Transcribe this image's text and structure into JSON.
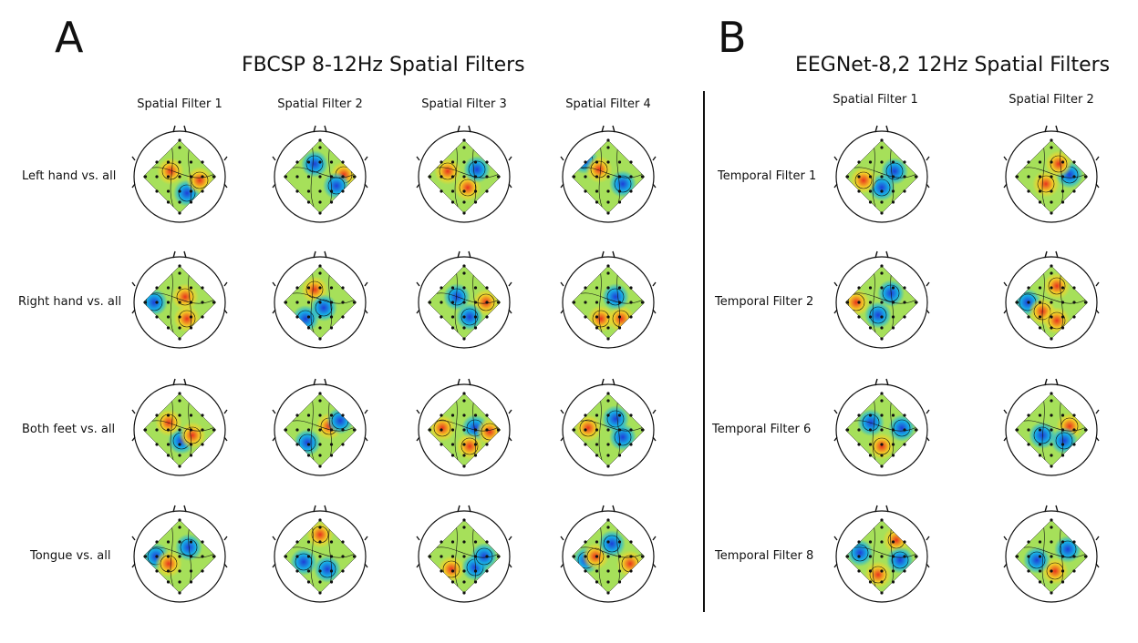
{
  "panel_a": {
    "letter": "A",
    "title": "FBCSP 8-12Hz Spatial Filters",
    "columns": [
      "Spatial Filter 1",
      "Spatial Filter 2",
      "Spatial Filter 3",
      "Spatial Filter 4"
    ],
    "rows": [
      "Left hand vs. all",
      "Right hand vs. all",
      "Both feet vs. all",
      "Tongue vs. all"
    ]
  },
  "panel_b": {
    "letter": "B",
    "title": "EEGNet-8,2 12Hz Spatial Filters",
    "columns": [
      "Spatial Filter 1",
      "Spatial Filter 2"
    ],
    "rows": [
      "Temporal Filter 1",
      "Temporal Filter 2",
      "Temporal Filter 6",
      "Temporal Filter 8"
    ]
  },
  "colors": {
    "line": "#111111",
    "base": "#a6e05a",
    "cool": "#1d3fd6",
    "cool_mid": "#18b4e6",
    "warm": "#e8341c",
    "warm_mid": "#f4d428"
  }
}
